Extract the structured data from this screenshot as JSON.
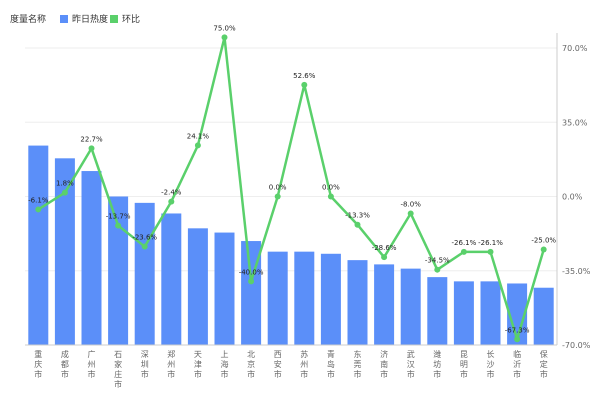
{
  "legend": {
    "title": "度量名称",
    "bar_label": "昨日热度",
    "line_label": "环比"
  },
  "colors": {
    "bar": "#5b8ff9",
    "line": "#5ad06b"
  },
  "chart_data": {
    "type": "bar",
    "categories": [
      "重庆市",
      "成都市",
      "广州市",
      "石家庄市",
      "深圳市",
      "郑州市",
      "天津市",
      "上海市",
      "北京市",
      "西安市",
      "苏州市",
      "青岛市",
      "东莞市",
      "济南市",
      "武汉市",
      "潍坊市",
      "昆明市",
      "长沙市",
      "临沂市",
      "保定市"
    ],
    "series": [
      {
        "name": "昨日热度",
        "type": "bar",
        "axis": "left",
        "values": [
          94,
          88,
          82,
          70,
          67,
          62,
          55,
          53,
          49,
          44,
          44,
          43,
          40,
          38,
          36,
          32,
          30,
          30,
          29,
          27
        ]
      },
      {
        "name": "环比",
        "type": "line",
        "axis": "right",
        "values": [
          -6.1,
          1.8,
          22.7,
          -13.7,
          -23.6,
          -2.4,
          24.1,
          75.0,
          -40.0,
          0.0,
          52.6,
          0.0,
          -13.3,
          -28.6,
          -8.0,
          -34.5,
          -26.1,
          -26.1,
          -67.3,
          -25.0
        ],
        "labels": [
          "-6.1%",
          "1.8%",
          "22.7%",
          "-13.7%",
          "-23.6%",
          "-2.4%",
          "24.1%",
          "75.0%",
          "-40.0%",
          "0.0%",
          "52.6%",
          "0.0%",
          "-13.3%",
          "-28.6%",
          "-8.0%",
          "-34.5%",
          "-26.1%",
          "-26.1%",
          "-67.3%",
          "-25.0%"
        ]
      }
    ],
    "y_left_range": [
      0,
      140
    ],
    "y_right_range": [
      -70,
      70
    ],
    "y_right_ticks": [
      70,
      35,
      0,
      -35,
      -70
    ],
    "y_right_tick_labels": [
      "70.0%",
      "35.0%",
      "0.0%",
      "-35.0%",
      "-70.0%"
    ],
    "grid": true
  }
}
